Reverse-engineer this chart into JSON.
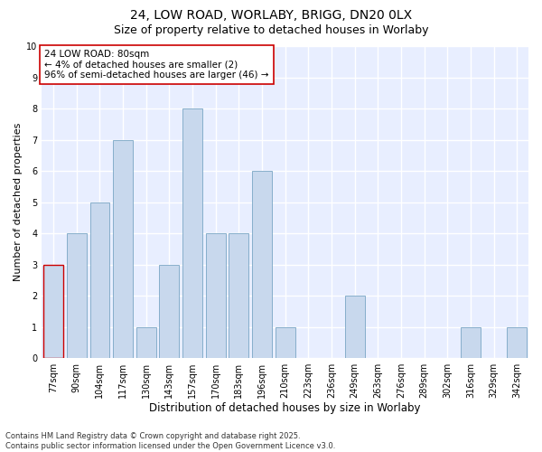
{
  "title1": "24, LOW ROAD, WORLABY, BRIGG, DN20 0LX",
  "title2": "Size of property relative to detached houses in Worlaby",
  "xlabel": "Distribution of detached houses by size in Worlaby",
  "ylabel": "Number of detached properties",
  "bins": [
    "77sqm",
    "90sqm",
    "104sqm",
    "117sqm",
    "130sqm",
    "143sqm",
    "157sqm",
    "170sqm",
    "183sqm",
    "196sqm",
    "210sqm",
    "223sqm",
    "236sqm",
    "249sqm",
    "263sqm",
    "276sqm",
    "289sqm",
    "302sqm",
    "316sqm",
    "329sqm",
    "342sqm"
  ],
  "values": [
    3,
    4,
    5,
    7,
    1,
    3,
    8,
    4,
    4,
    6,
    1,
    0,
    0,
    2,
    0,
    0,
    0,
    0,
    1,
    0,
    1
  ],
  "bar_color": "#c8d8ed",
  "bar_edge_color": "#6699bb",
  "highlight_edge_color": "#cc0000",
  "annotation_text": "24 LOW ROAD: 80sqm\n← 4% of detached houses are smaller (2)\n96% of semi-detached houses are larger (46) →",
  "annotation_box_color": "#ffffff",
  "annotation_box_edge_color": "#cc0000",
  "ylim": [
    0,
    10
  ],
  "yticks": [
    0,
    1,
    2,
    3,
    4,
    5,
    6,
    7,
    8,
    9,
    10
  ],
  "fig_bg_color": "#ffffff",
  "plot_bg_color": "#e8eeff",
  "grid_color": "#ffffff",
  "footer": "Contains HM Land Registry data © Crown copyright and database right 2025.\nContains public sector information licensed under the Open Government Licence v3.0.",
  "title1_fontsize": 10,
  "title2_fontsize": 9,
  "xlabel_fontsize": 8.5,
  "ylabel_fontsize": 8,
  "tick_fontsize": 7,
  "annotation_fontsize": 7.5,
  "footer_fontsize": 6
}
